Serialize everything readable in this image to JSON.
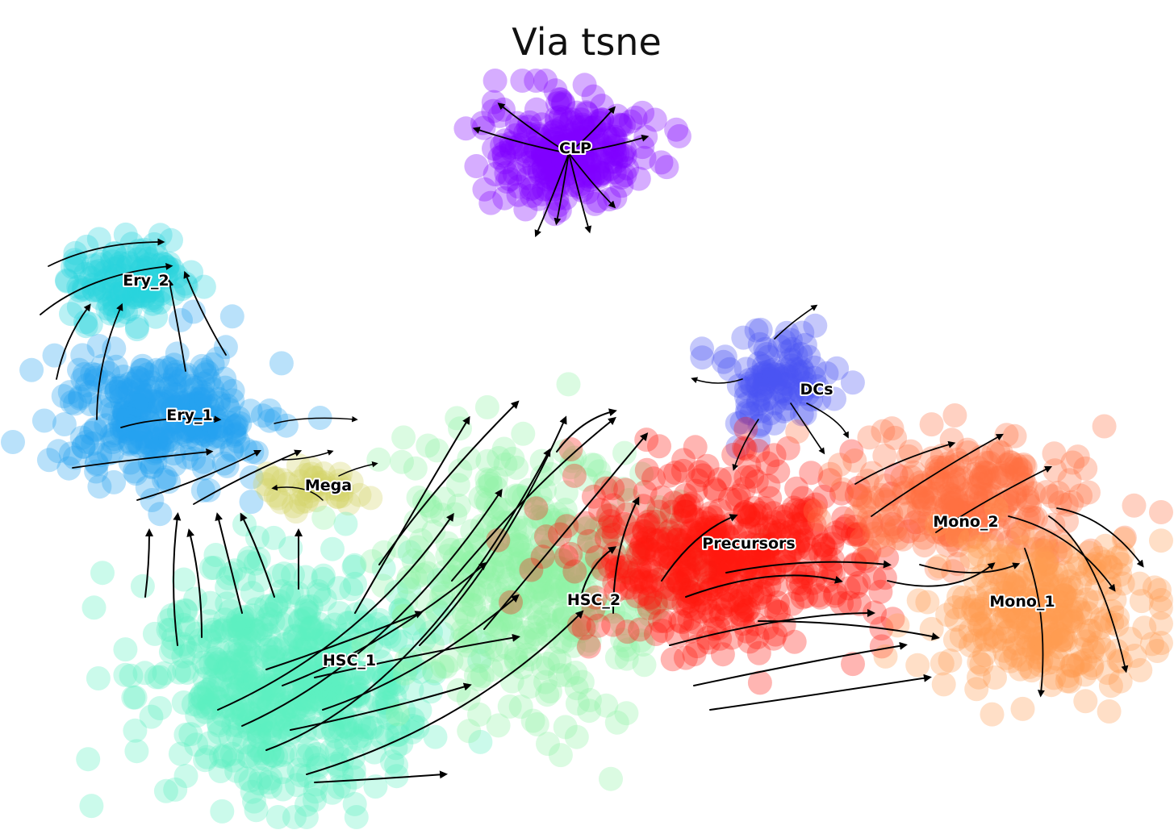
{
  "chart_data": {
    "type": "scatter",
    "title": "Via tsne",
    "xlabel": "",
    "ylabel": "",
    "axes_visible": false,
    "grid": false,
    "legend": "none",
    "overlay": "velocity streamlines with arrowheads (black)",
    "clusters": [
      {
        "name": "CLP",
        "color": "#8000ff",
        "center": [
          705,
          190
        ],
        "spread": [
          115,
          80
        ],
        "n": 260
      },
      {
        "name": "Ery_2",
        "color": "#28d4dc",
        "center": [
          150,
          345
        ],
        "spread": [
          90,
          60
        ],
        "n": 130
      },
      {
        "name": "Ery_1",
        "color": "#26a3ee",
        "center": [
          195,
          520
        ],
        "spread": [
          150,
          95
        ],
        "n": 320
      },
      {
        "name": "Mega",
        "color": "#d4d268",
        "center": [
          385,
          605
        ],
        "spread": [
          60,
          35
        ],
        "n": 45
      },
      {
        "name": "DCs",
        "color": "#4a55f2",
        "center": [
          960,
          470
        ],
        "spread": [
          80,
          80
        ],
        "n": 110
      },
      {
        "name": "HSC_1",
        "color": "#5ef0c0",
        "center": [
          360,
          845
        ],
        "spread": [
          210,
          160
        ],
        "n": 620
      },
      {
        "name": "HSC_2",
        "color": "#90f2a4",
        "center": [
          650,
          715
        ],
        "spread": [
          200,
          180
        ],
        "n": 420
      },
      {
        "name": "Precursors",
        "color": "#ff1810",
        "center": [
          900,
          690
        ],
        "spread": [
          230,
          130
        ],
        "n": 520
      },
      {
        "name": "Mono_2",
        "color": "#ff7040",
        "center": [
          1200,
          620
        ],
        "spread": [
          180,
          90
        ],
        "n": 260
      },
      {
        "name": "Mono_1",
        "color": "#ff9a52",
        "center": [
          1290,
          760
        ],
        "spread": [
          150,
          110
        ],
        "n": 300
      }
    ]
  },
  "labels": {
    "clp": "CLP",
    "ery2": "Ery_2",
    "ery1": "Ery_1",
    "mega": "Mega",
    "dcs": "DCs",
    "precursors": "Precursors",
    "mono2": "Mono_2",
    "mono1": "Mono_1",
    "hsc2": "HSC_2",
    "hsc1": "HSC_1"
  }
}
